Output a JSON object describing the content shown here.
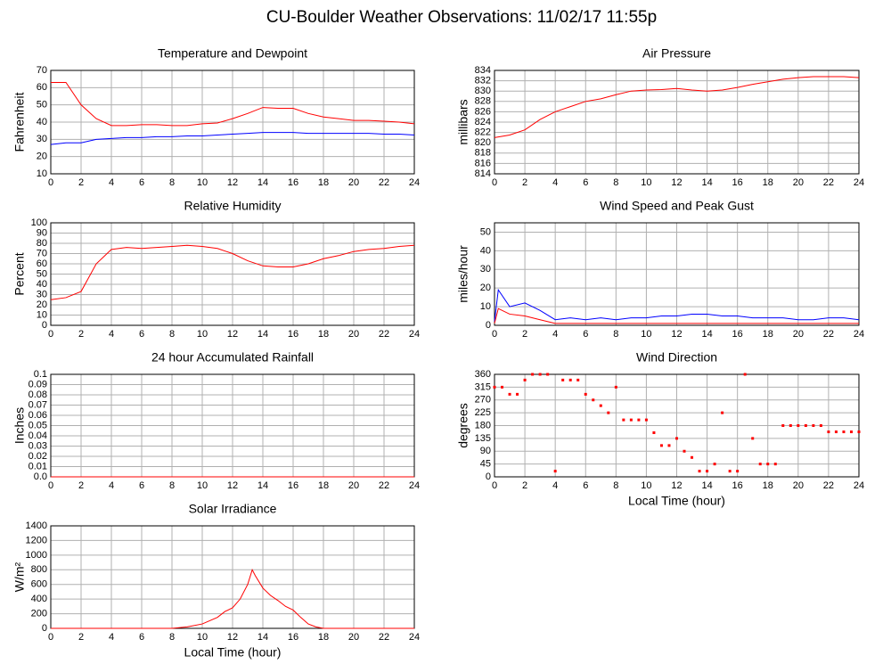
{
  "title": "CU-Boulder Weather Observations: 11/02/17 11:55p",
  "chart_data": [
    {
      "type": "line",
      "title": "Temperature and Dewpoint",
      "ylabel": "Fahrenheit",
      "x": [
        0,
        1,
        2,
        3,
        4,
        5,
        6,
        7,
        8,
        9,
        10,
        11,
        12,
        13,
        14,
        15,
        16,
        17,
        18,
        19,
        20,
        21,
        22,
        23,
        24
      ],
      "series": [
        {
          "color": "#ff0000",
          "values": [
            63,
            63,
            50,
            42,
            38,
            38,
            38.5,
            38.5,
            38,
            38,
            39,
            39.5,
            42,
            45,
            48.5,
            48,
            48,
            45,
            43,
            42,
            41,
            41,
            40.5,
            40,
            39
          ]
        },
        {
          "color": "#0000ff",
          "values": [
            27,
            28,
            28,
            30,
            30.5,
            31,
            31,
            31.5,
            31.5,
            32,
            32,
            32.5,
            33,
            33.5,
            34,
            34,
            34,
            33.5,
            33.5,
            33.5,
            33.5,
            33.5,
            33,
            33,
            32.5
          ]
        }
      ],
      "xlim": [
        0,
        24
      ],
      "xticks": [
        0,
        2,
        4,
        6,
        8,
        10,
        12,
        14,
        16,
        18,
        20,
        22,
        24
      ],
      "ylim": [
        10,
        70
      ],
      "yticks": [
        10,
        20,
        30,
        40,
        50,
        60,
        70
      ],
      "grid": true
    },
    {
      "type": "line",
      "title": "Air Pressure",
      "ylabel": "millibars",
      "x": [
        0,
        1,
        2,
        3,
        4,
        5,
        6,
        7,
        8,
        9,
        10,
        11,
        12,
        13,
        14,
        15,
        16,
        17,
        18,
        19,
        20,
        21,
        22,
        23,
        24
      ],
      "series": [
        {
          "color": "#ff0000",
          "values": [
            821,
            821.5,
            822.5,
            824.5,
            826,
            827,
            828,
            828.5,
            829.3,
            830,
            830.2,
            830.3,
            830.5,
            830.2,
            830,
            830.2,
            830.7,
            831.3,
            831.8,
            832.3,
            832.6,
            832.8,
            832.8,
            832.8,
            832.6
          ]
        }
      ],
      "xlim": [
        0,
        24
      ],
      "xticks": [
        0,
        2,
        4,
        6,
        8,
        10,
        12,
        14,
        16,
        18,
        20,
        22,
        24
      ],
      "ylim": [
        814,
        834
      ],
      "yticks": [
        814,
        816,
        818,
        820,
        822,
        824,
        826,
        828,
        830,
        832,
        834
      ],
      "grid": true
    },
    {
      "type": "line",
      "title": "Relative Humidity",
      "ylabel": "Percent",
      "x": [
        0,
        1,
        2,
        3,
        4,
        5,
        6,
        7,
        8,
        9,
        10,
        11,
        12,
        13,
        14,
        15,
        16,
        17,
        18,
        19,
        20,
        21,
        22,
        23,
        24
      ],
      "series": [
        {
          "color": "#ff0000",
          "values": [
            25,
            27,
            33,
            60,
            74,
            76,
            75,
            76,
            77,
            78,
            77,
            75,
            70,
            63,
            58,
            57,
            57,
            60,
            65,
            68,
            72,
            74,
            75,
            77,
            78
          ]
        }
      ],
      "xlim": [
        0,
        24
      ],
      "xticks": [
        0,
        2,
        4,
        6,
        8,
        10,
        12,
        14,
        16,
        18,
        20,
        22,
        24
      ],
      "ylim": [
        0,
        100
      ],
      "yticks": [
        0,
        10,
        20,
        30,
        40,
        50,
        60,
        70,
        80,
        90,
        100
      ],
      "grid": true
    },
    {
      "type": "line",
      "title": "Wind Speed and Peak Gust",
      "ylabel": "miles/hour",
      "x": [
        0,
        0.25,
        1,
        2,
        3,
        4,
        5,
        6,
        7,
        8,
        9,
        10,
        11,
        12,
        13,
        14,
        15,
        16,
        17,
        18,
        19,
        20,
        21,
        22,
        23,
        24
      ],
      "series": [
        {
          "color": "#0000ff",
          "values": [
            2,
            19,
            10,
            12,
            8,
            3,
            4,
            3,
            4,
            3,
            4,
            4,
            5,
            5,
            6,
            6,
            5,
            5,
            4,
            4,
            4,
            3,
            3,
            4,
            4,
            3
          ]
        },
        {
          "color": "#ff0000",
          "values": [
            1,
            9,
            6,
            5,
            3,
            1,
            1,
            1,
            1,
            1,
            1,
            1,
            1,
            1,
            1,
            1,
            1,
            1,
            1,
            1,
            1,
            1,
            1,
            1,
            1,
            1
          ]
        }
      ],
      "xlim": [
        0,
        24
      ],
      "xticks": [
        0,
        2,
        4,
        6,
        8,
        10,
        12,
        14,
        16,
        18,
        20,
        22,
        24
      ],
      "ylim": [
        0,
        55
      ],
      "yticks": [
        0,
        10,
        20,
        30,
        40,
        50
      ],
      "grid": true
    },
    {
      "type": "line",
      "title": "24 hour Accumulated Rainfall",
      "ylabel": "Inches",
      "x": [
        0,
        1,
        2,
        3,
        4,
        5,
        6,
        7,
        8,
        9,
        10,
        11,
        12,
        13,
        14,
        15,
        16,
        17,
        18,
        19,
        20,
        21,
        22,
        23,
        24
      ],
      "series": [
        {
          "color": "#ff0000",
          "values": [
            0,
            0,
            0,
            0,
            0,
            0,
            0,
            0,
            0,
            0,
            0,
            0,
            0,
            0,
            0,
            0,
            0,
            0,
            0,
            0,
            0,
            0,
            0,
            0,
            0
          ]
        }
      ],
      "xlim": [
        0,
        24
      ],
      "xticks": [
        0,
        2,
        4,
        6,
        8,
        10,
        12,
        14,
        16,
        18,
        20,
        22,
        24
      ],
      "ylim": [
        0,
        0.1
      ],
      "yticks": [
        {
          "value": 0,
          "label": "0.0"
        },
        0.01,
        0.02,
        0.03,
        0.04,
        0.05,
        0.06,
        0.07,
        0.08,
        0.09,
        0.1
      ],
      "grid": true
    },
    {
      "type": "scatter",
      "title": "Wind Direction",
      "ylabel": "degrees",
      "xlabel": "Local Time (hour)",
      "x": [
        0,
        0.5,
        1,
        1.5,
        2,
        2.5,
        3,
        3.5,
        4,
        4.5,
        5,
        5.5,
        6,
        6.5,
        7,
        7.5,
        8,
        8.5,
        9,
        9.5,
        10,
        10.5,
        11,
        11.5,
        12,
        12.5,
        13,
        13.5,
        14,
        14.5,
        15,
        15.5,
        16,
        16.5,
        17,
        17.5,
        18,
        18.5,
        19,
        19.5,
        20,
        20.5,
        21,
        21.5,
        22,
        22.5,
        23,
        23.5,
        24
      ],
      "series": [
        {
          "color": "#ff0000",
          "values": [
            315,
            315,
            290,
            290,
            340,
            360,
            360,
            360,
            20,
            340,
            340,
            340,
            290,
            270,
            250,
            225,
            315,
            200,
            200,
            200,
            200,
            155,
            110,
            110,
            135,
            90,
            68,
            20,
            20,
            45,
            225,
            20,
            20,
            360,
            135,
            45,
            45,
            45,
            180,
            180,
            180,
            180,
            180,
            180,
            158,
            158,
            158,
            158,
            158
          ]
        }
      ],
      "xlim": [
        0,
        24
      ],
      "xticks": [
        0,
        2,
        4,
        6,
        8,
        10,
        12,
        14,
        16,
        18,
        20,
        22,
        24
      ],
      "ylim": [
        0,
        360
      ],
      "yticks": [
        0,
        45,
        90,
        135,
        180,
        225,
        270,
        315,
        360
      ],
      "grid": true
    },
    {
      "type": "line",
      "title": "Solar Irradiance",
      "ylabel": "W/m²",
      "xlabel": "Local Time (hour)",
      "x": [
        0,
        1,
        2,
        3,
        4,
        5,
        6,
        7,
        8,
        9,
        10,
        11,
        11.5,
        12,
        12.5,
        13,
        13.3,
        13.5,
        14,
        14.5,
        15,
        15.5,
        16,
        16.5,
        17,
        17.5,
        18,
        19,
        20,
        21,
        22,
        23,
        24
      ],
      "series": [
        {
          "color": "#ff0000",
          "values": [
            0,
            0,
            0,
            0,
            0,
            0,
            0,
            0,
            0,
            20,
            60,
            150,
            230,
            280,
            400,
            600,
            800,
            720,
            550,
            450,
            380,
            300,
            250,
            150,
            60,
            20,
            0,
            0,
            0,
            0,
            0,
            0,
            0
          ]
        }
      ],
      "xlim": [
        0,
        24
      ],
      "xticks": [
        0,
        2,
        4,
        6,
        8,
        10,
        12,
        14,
        16,
        18,
        20,
        22,
        24
      ],
      "ylim": [
        0,
        1400
      ],
      "yticks": [
        0,
        200,
        400,
        600,
        800,
        1000,
        1200,
        1400
      ],
      "grid": true
    }
  ]
}
